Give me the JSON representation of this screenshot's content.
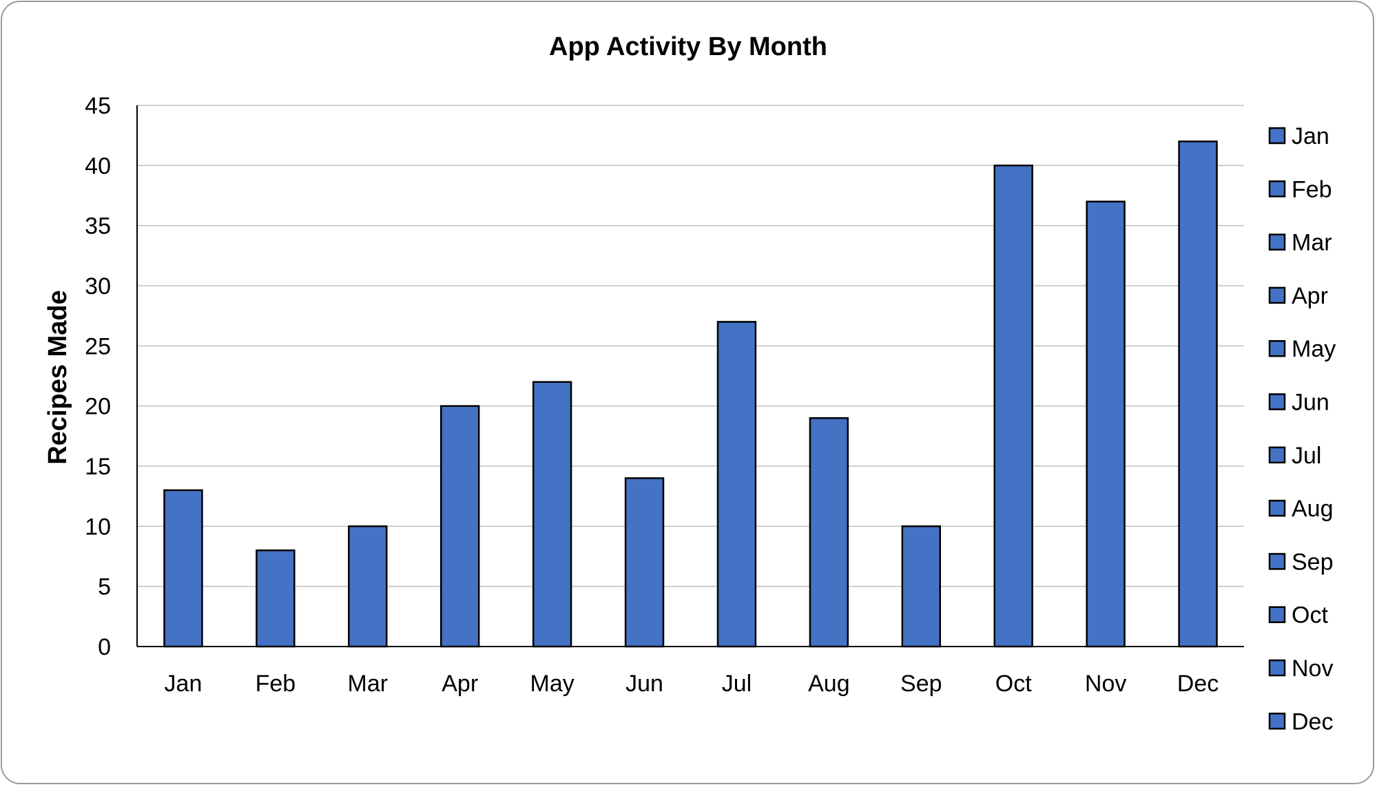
{
  "chart_data": {
    "type": "bar",
    "title": "App Activity By Month",
    "xlabel": "",
    "ylabel": "Recipes Made",
    "categories": [
      "Jan",
      "Feb",
      "Mar",
      "Apr",
      "May",
      "Jun",
      "Jul",
      "Aug",
      "Sep",
      "Oct",
      "Nov",
      "Dec"
    ],
    "values": [
      13,
      8,
      10,
      20,
      22,
      14,
      27,
      19,
      10,
      40,
      37,
      42
    ],
    "ylim": [
      0,
      45
    ],
    "yticks": [
      0,
      5,
      10,
      15,
      20,
      25,
      30,
      35,
      40,
      45
    ],
    "grid": true,
    "legend": {
      "position": "right",
      "entries": [
        "Jan",
        "Feb",
        "Mar",
        "Apr",
        "May",
        "Jun",
        "Jul",
        "Aug",
        "Sep",
        "Oct",
        "Nov",
        "Dec"
      ]
    },
    "colors": {
      "bar_fill": "#4472C4",
      "bar_stroke": "#000000",
      "grid": "#bfbfbf",
      "axis": "#000000"
    }
  }
}
